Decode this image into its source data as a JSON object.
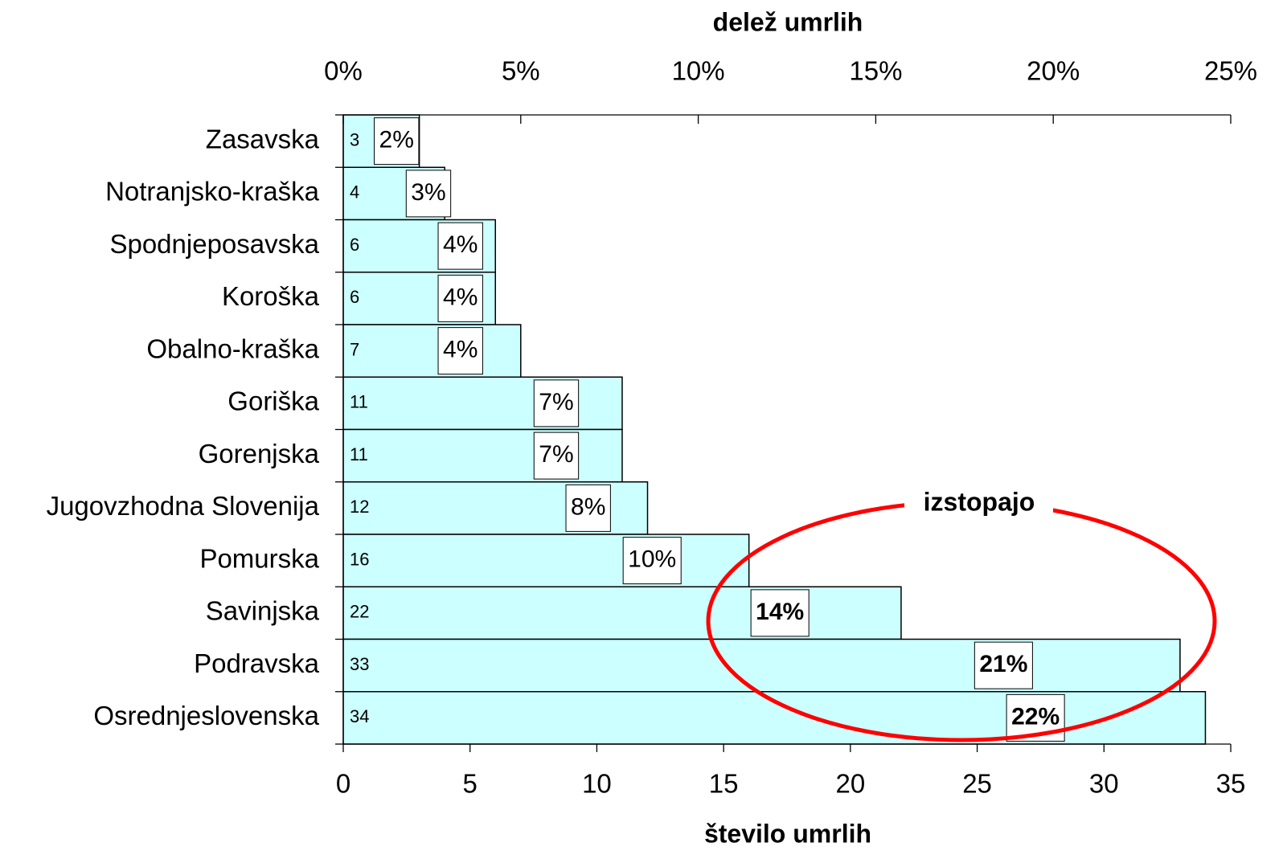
{
  "chart_data": {
    "type": "bar",
    "orientation": "horizontal",
    "x_label": "število umrlih",
    "x2_label": "delež umrlih",
    "categories": [
      "Zasavska",
      "Notranjsko-kraška",
      "Spodnjeposavska",
      "Koroška",
      "Obalno-kraška",
      "Goriška",
      "Gorenjska",
      "Jugovzhodna Slovenija",
      "Pomurska",
      "Savinjska",
      "Podravska",
      "Osrednjeslovenska"
    ],
    "series": [
      {
        "values": [
          3,
          4,
          6,
          6,
          7,
          11,
          11,
          12,
          16,
          22,
          33,
          34
        ],
        "color": "#ccffff"
      },
      {
        "values": [
          2,
          3,
          4,
          4,
          4,
          7,
          7,
          8,
          10,
          14,
          21,
          22
        ],
        "value_labels": [
          "2%",
          "3%",
          "4%",
          "4%",
          "4%",
          "7%",
          "7%",
          "8%",
          "10%",
          "14%",
          "21%",
          "22%"
        ],
        "axis": "x2"
      }
    ],
    "xlim": [
      0,
      35
    ],
    "xticks": [
      0,
      5,
      10,
      15,
      20,
      25,
      30,
      35
    ],
    "x2lim": [
      0,
      25
    ],
    "x2ticks": [
      {
        "value": 0,
        "label": "0%"
      },
      {
        "value": 5,
        "label": "5%"
      },
      {
        "value": 10,
        "label": "10%"
      },
      {
        "value": 15,
        "label": "15%"
      },
      {
        "value": 20,
        "label": "20%"
      },
      {
        "value": 25,
        "label": "25%"
      }
    ],
    "annotation": "izstopajo"
  }
}
